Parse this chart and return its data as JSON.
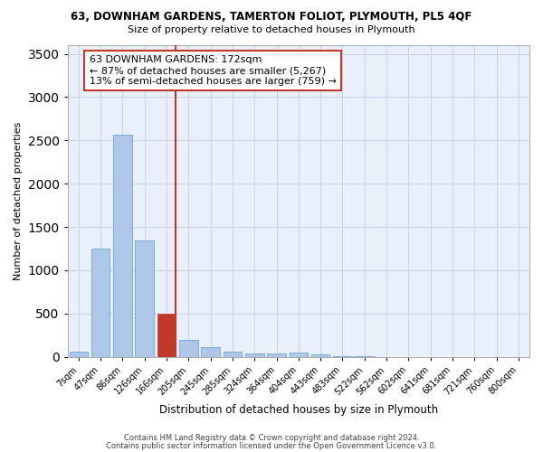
{
  "title": "63, DOWNHAM GARDENS, TAMERTON FOLIOT, PLYMOUTH, PL5 4QF",
  "subtitle": "Size of property relative to detached houses in Plymouth",
  "xlabel": "Distribution of detached houses by size in Plymouth",
  "ylabel": "Number of detached properties",
  "bins": [
    "7sqm",
    "47sqm",
    "86sqm",
    "126sqm",
    "166sqm",
    "205sqm",
    "245sqm",
    "285sqm",
    "324sqm",
    "364sqm",
    "404sqm",
    "443sqm",
    "483sqm",
    "522sqm",
    "562sqm",
    "602sqm",
    "641sqm",
    "681sqm",
    "721sqm",
    "760sqm",
    "800sqm"
  ],
  "values": [
    55,
    1245,
    2570,
    1345,
    500,
    195,
    110,
    55,
    40,
    35,
    45,
    30,
    5,
    2,
    1,
    1,
    0,
    0,
    0,
    0,
    0
  ],
  "highlight_bin_index": 4,
  "highlight_color": "#c0392b",
  "bar_color": "#aec6e8",
  "bar_edge_color": "#5b9bd5",
  "bg_color": "#eaf0fb",
  "grid_color": "#c8d4e8",
  "annotation_text": "63 DOWNHAM GARDENS: 172sqm\n← 87% of detached houses are smaller (5,267)\n13% of semi-detached houses are larger (759) →",
  "annotation_box_color": "#c0392b",
  "ylim": [
    0,
    3600
  ],
  "yticks": [
    0,
    500,
    1000,
    1500,
    2000,
    2500,
    3000,
    3500
  ],
  "footnote1": "Contains HM Land Registry data © Crown copyright and database right 2024.",
  "footnote2": "Contains public sector information licensed under the Open Government Licence v3.0."
}
